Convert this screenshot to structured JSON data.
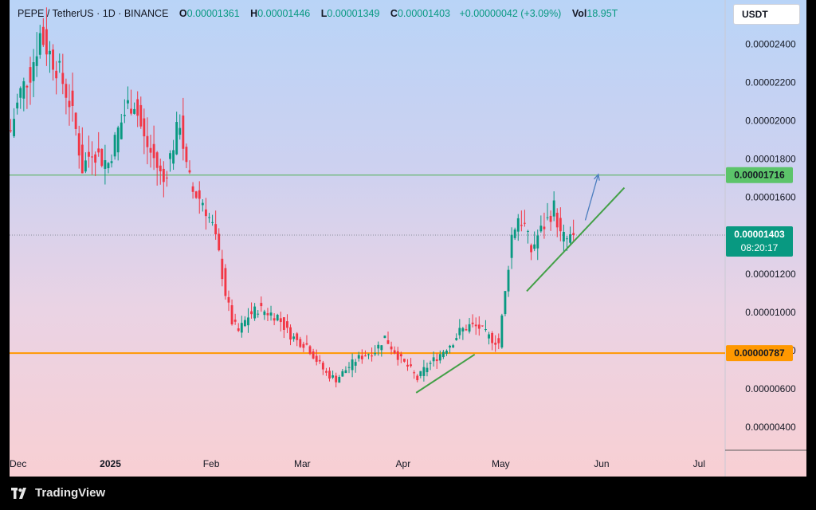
{
  "header": {
    "symbol": "PEPE / TetherUS · 1D · BINANCE",
    "open_label": "O",
    "open": "0.00001361",
    "high_label": "H",
    "high": "0.00001446",
    "low_label": "L",
    "low": "0.00001349",
    "close_label": "C",
    "close": "0.00001403",
    "change": "+0.00000042 (+3.09%)",
    "vol_label": "Vol",
    "vol": "18.95T"
  },
  "currency_button": "USDT",
  "footer": {
    "brand": "TradingView"
  },
  "colors": {
    "up": "#089981",
    "down": "#f23645",
    "resistance_line": "#4caf50",
    "support_line": "#ff9800",
    "trendline": "#43a047",
    "projection_arrow": "#4a7dbe"
  },
  "chart_data": {
    "type": "candlestick",
    "interval": "1D",
    "y_axis": {
      "ticks": [
        "0.00002400",
        "0.00002200",
        "0.00002000",
        "0.00001800",
        "0.00001600",
        "0.00001200",
        "0.00001000",
        "0.00000800",
        "0.00000600",
        "0.00000400"
      ],
      "ylim": [
        2.8e-06,
        2.63e-05
      ],
      "scale": "linear"
    },
    "x_axis": {
      "labels": [
        {
          "label": "Dec",
          "day": 0
        },
        {
          "label": "2025",
          "day": 31
        },
        {
          "label": "Feb",
          "day": 62
        },
        {
          "label": "Mar",
          "day": 90
        },
        {
          "label": "Apr",
          "day": 121
        },
        {
          "label": "May",
          "day": 151
        },
        {
          "label": "Jun",
          "day": 182
        },
        {
          "label": "Jul",
          "day": 212
        }
      ],
      "xlim": [
        0,
        220
      ]
    },
    "horizontal_levels": [
      {
        "price": 1.716e-05,
        "label": "0.00001716",
        "color": "#4caf50"
      },
      {
        "price": 7.87e-06,
        "label": "0.00000787",
        "color": "#ff9800"
      }
    ],
    "current_price": {
      "price": 1.403e-05,
      "label": "0.00001403",
      "countdown": "08:20:17"
    },
    "trendlines": [
      {
        "from": [
          125,
          5.8e-06
        ],
        "to": [
          143,
          7.8e-06
        ]
      },
      {
        "from": [
          159,
          1.11e-05
        ],
        "to": [
          189,
          1.65e-05
        ]
      }
    ],
    "projection_arrow": {
      "from": [
        177,
        1.48e-05
      ],
      "to": [
        181,
        1.72e-05
      ]
    },
    "anchors": [
      [
        0,
        1.95e-05
      ],
      [
        3,
        2.15e-05
      ],
      [
        6,
        2.25e-05
      ],
      [
        9,
        2.45e-05
      ],
      [
        12,
        2.35e-05
      ],
      [
        15,
        2.25e-05
      ],
      [
        18,
        2.1e-05
      ],
      [
        20,
        1.95e-05
      ],
      [
        22,
        1.75e-05
      ],
      [
        25,
        1.85e-05
      ],
      [
        28,
        1.8e-05
      ],
      [
        30,
        1.78e-05
      ],
      [
        33,
        1.95e-05
      ],
      [
        36,
        2.08e-05
      ],
      [
        38,
        2.1e-05
      ],
      [
        41,
        1.9e-05
      ],
      [
        44,
        1.8e-05
      ],
      [
        47,
        1.68e-05
      ],
      [
        50,
        1.88e-05
      ],
      [
        52,
        2e-05
      ],
      [
        54,
        1.75e-05
      ],
      [
        56,
        1.63e-05
      ],
      [
        59,
        1.58e-05
      ],
      [
        62,
        1.45e-05
      ],
      [
        64,
        1.3e-05
      ],
      [
        66,
        1.1e-05
      ],
      [
        68,
        9.5e-06
      ],
      [
        70,
        9e-06
      ],
      [
        73,
        9.8e-06
      ],
      [
        76,
        1.02e-05
      ],
      [
        79,
        1e-05
      ],
      [
        82,
        9.8e-06
      ],
      [
        85,
        9e-06
      ],
      [
        88,
        8.5e-06
      ],
      [
        91,
        8.3e-06
      ],
      [
        94,
        7.5e-06
      ],
      [
        97,
        6.8e-06
      ],
      [
        100,
        6.5e-06
      ],
      [
        103,
        7e-06
      ],
      [
        106,
        7.5e-06
      ],
      [
        109,
        7.8e-06
      ],
      [
        112,
        8e-06
      ],
      [
        115,
        8.7e-06
      ],
      [
        117,
        8.2e-06
      ],
      [
        120,
        7.5e-06
      ],
      [
        123,
        7e-06
      ],
      [
        125,
        6.5e-06
      ],
      [
        127,
        7e-06
      ],
      [
        130,
        7.5e-06
      ],
      [
        133,
        8e-06
      ],
      [
        136,
        8.5e-06
      ],
      [
        138,
        9e-06
      ],
      [
        141,
        9.3e-06
      ],
      [
        144,
        9.2e-06
      ],
      [
        147,
        8.7e-06
      ],
      [
        150,
        8.4e-06
      ],
      [
        152,
        1.1e-05
      ],
      [
        154,
        1.4e-05
      ],
      [
        156,
        1.5e-05
      ],
      [
        158,
        1.45e-05
      ],
      [
        160,
        1.32e-05
      ],
      [
        162,
        1.4e-05
      ],
      [
        165,
        1.48e-05
      ],
      [
        167,
        1.55e-05
      ],
      [
        169,
        1.4e-05
      ],
      [
        171,
        1.38e-05
      ],
      [
        173,
        1.4e-05
      ]
    ]
  }
}
